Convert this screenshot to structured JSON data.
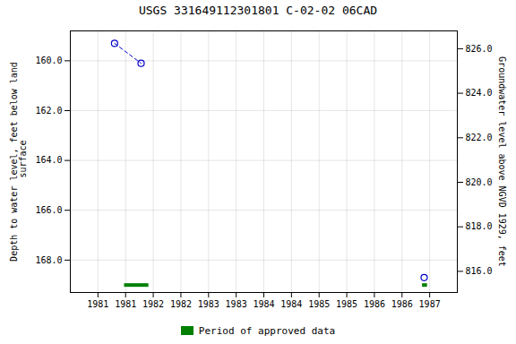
{
  "chart_data": {
    "type": "scatter",
    "title": "USGS 331649112301801 C-02-02 06CAD",
    "y_label": "Depth to water level, feet below land\n surface",
    "y2_label": "Groundwater level above NGVD 1929, feet",
    "xlim": [
      1980.5,
      1987.5
    ],
    "xticks": [
      1981,
      {
        "value": 1981.5,
        "label": "1981"
      },
      1982,
      {
        "value": 1982.5,
        "label": "1982"
      },
      1983,
      {
        "value": 1983.5,
        "label": "1983"
      },
      1984,
      {
        "value": 1984.5,
        "label": "1984"
      },
      1985,
      {
        "value": 1985.5,
        "label": "1985"
      },
      1986,
      {
        "value": 1986.5,
        "label": "1986"
      },
      1987
    ],
    "ylim": [
      169.3,
      158.8
    ],
    "yticks": [
      {
        "value": 160.0,
        "label": "160.0"
      },
      {
        "value": 162.0,
        "label": "162.0"
      },
      {
        "value": 164.0,
        "label": "164.0"
      },
      {
        "value": 166.0,
        "label": "166.0"
      },
      {
        "value": 168.0,
        "label": "168.0"
      }
    ],
    "y2lim": [
      815.05,
      826.8
    ],
    "y2ticks": [
      {
        "value": 816.0,
        "label": "816.0"
      },
      {
        "value": 818.0,
        "label": "818.0"
      },
      {
        "value": 820.0,
        "label": "820.0"
      },
      {
        "value": 822.0,
        "label": "822.0"
      },
      {
        "value": 824.0,
        "label": "824.0"
      },
      {
        "value": 826.0,
        "label": "826.0"
      }
    ],
    "grid": true,
    "legend": "bottom",
    "series": [
      {
        "type": "line",
        "line_style": "dashed",
        "color": "#0000cc",
        "x": [
          1981.3,
          1981.78
        ],
        "values": [
          159.3,
          160.1
        ]
      },
      {
        "type": "scatter",
        "marker": "circle",
        "color": "#0000cc",
        "x": [
          1981.3,
          1981.78,
          1986.9
        ],
        "values": [
          159.3,
          160.1,
          168.7
        ]
      },
      {
        "type": "segment",
        "name": "Period of approved data",
        "color": "#008000",
        "x": [
          1981.48,
          1986.87
        ],
        "x_end": [
          1981.92,
          1986.96
        ],
        "values": [
          169.0,
          169.0
        ]
      }
    ]
  }
}
